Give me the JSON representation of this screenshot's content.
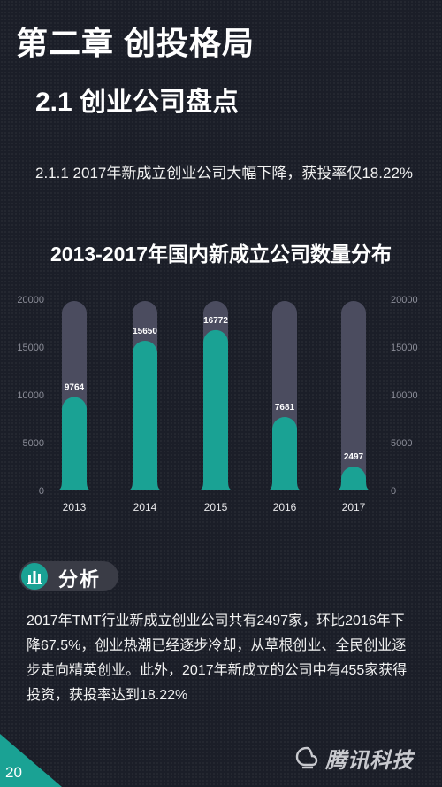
{
  "header": {
    "chapter_title": "第二章 创投格局",
    "section_title": "2.1 创业公司盘点",
    "subsection": "2.1.1  2017年新成立创业公司大幅下降，获投率仅18.22%"
  },
  "chart_title": "2013-2017年国内新成立公司数量分布",
  "chart_data": {
    "type": "bar",
    "title": "2013-2017年国内新成立公司数量分布",
    "categories": [
      "2013",
      "2014",
      "2015",
      "2016",
      "2017"
    ],
    "values": [
      9764,
      15650,
      16772,
      7681,
      2497
    ],
    "ylim": [
      0,
      20000
    ],
    "yticks": [
      0,
      5000,
      10000,
      15000,
      20000
    ],
    "yaxis_both_sides": true,
    "grid": false,
    "bar_color": "#1aa294",
    "track_color": "#4b4c5f"
  },
  "analysis": {
    "label": "分析",
    "icon": "bar-chart-icon",
    "text": "2017年TMT行业新成立创业公司共有2497家，环比2016年下降67.5%，创业热潮已经逐步冷却，从草根创业、全民创业逐步走向精英创业。此外，2017年新成立的公司中有455家获得投资，获投率达到18.22%"
  },
  "footer": {
    "page_number": "20",
    "logo_text": "腾讯科技",
    "logo_icon": "tencent-logo-icon"
  },
  "colors": {
    "accent": "#1aa294",
    "background": "#1b1e28"
  }
}
